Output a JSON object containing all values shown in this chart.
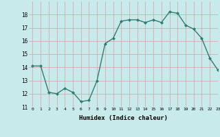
{
  "x": [
    0,
    1,
    2,
    3,
    4,
    5,
    6,
    7,
    8,
    9,
    10,
    11,
    12,
    13,
    14,
    15,
    16,
    17,
    18,
    19,
    20,
    21,
    22,
    23
  ],
  "y": [
    14.1,
    14.1,
    12.1,
    12.0,
    12.4,
    12.1,
    11.4,
    11.5,
    13.0,
    15.8,
    16.2,
    17.5,
    17.6,
    17.6,
    17.4,
    17.6,
    17.4,
    18.2,
    18.1,
    17.2,
    16.9,
    16.2,
    14.7,
    13.8
  ],
  "xlabel": "Humidex (Indice chaleur)",
  "ylim": [
    11,
    19
  ],
  "xlim": [
    -0.5,
    23
  ],
  "yticks": [
    11,
    12,
    13,
    14,
    15,
    16,
    17,
    18
  ],
  "xticks": [
    0,
    1,
    2,
    3,
    4,
    5,
    6,
    7,
    8,
    9,
    10,
    11,
    12,
    13,
    14,
    15,
    16,
    17,
    18,
    19,
    20,
    21,
    22,
    23
  ],
  "line_color": "#2e7d6e",
  "marker_color": "#2e7d6e",
  "bg_color": "#c8eaea",
  "grid_color": "#d4a0a0",
  "marker": "D",
  "marker_size": 2.0,
  "line_width": 1.0
}
